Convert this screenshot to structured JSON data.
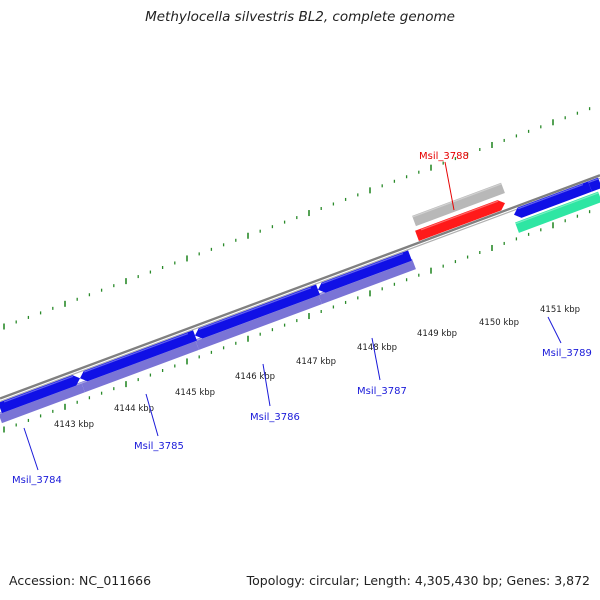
{
  "title": "Methylocella silvestris BL2, complete genome",
  "footer": {
    "accession": "Accession: NC_011666",
    "summary": "Topology: circular; Length: 4,305,430 bp; Genes: 3,872"
  },
  "colors": {
    "cds_forward": "#1010e6",
    "cds_reverse_shadow": "#7a74d6",
    "highlight_gene": "#ff1a1a",
    "gray_feature": "#b8b8b8",
    "rna_feature": "#2ee6a3",
    "backbone": "#808080",
    "tick": "#2a8a2a",
    "label_blue": "#1a1ad9",
    "label_red": "#e60000"
  },
  "kbp_labels": [
    "4143 kbp",
    "4144 kbp",
    "4145 kbp",
    "4146 kbp",
    "4147 kbp",
    "4148 kbp",
    "4149 kbp",
    "4150 kbp",
    "4151 kbp"
  ],
  "genes": [
    {
      "label": "Msil_3784",
      "color": "blue"
    },
    {
      "label": "Msil_3785",
      "color": "blue"
    },
    {
      "label": "Msil_3786",
      "color": "blue"
    },
    {
      "label": "Msil_3787",
      "color": "blue"
    },
    {
      "label": "Msil_3788",
      "color": "red"
    },
    {
      "label": "Msil_3789",
      "color": "blue"
    }
  ]
}
